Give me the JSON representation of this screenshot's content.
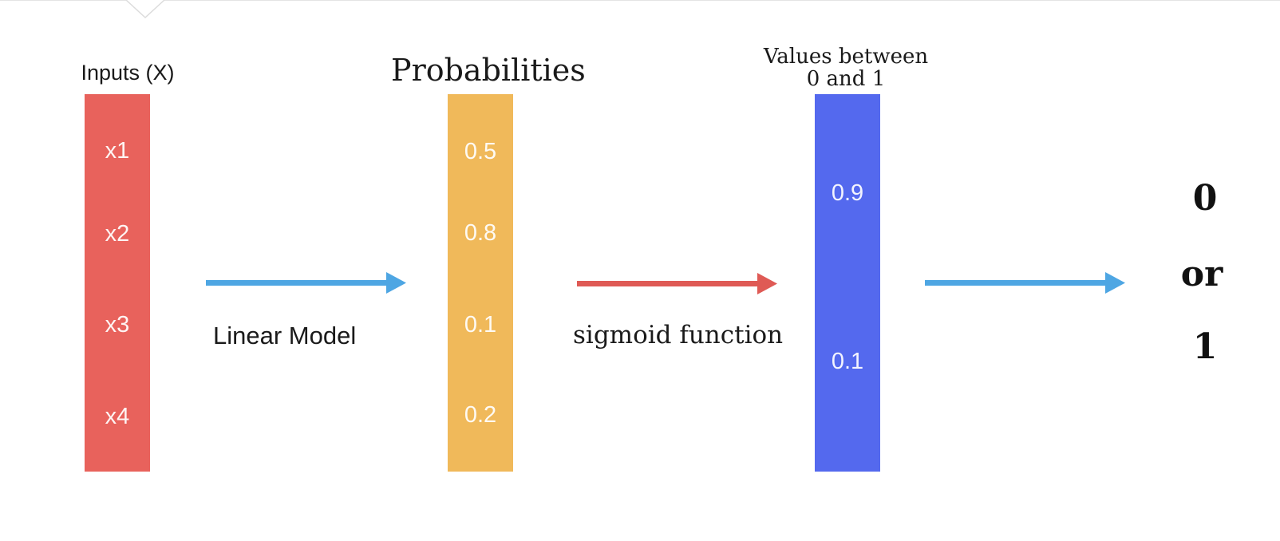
{
  "columns": {
    "inputs": {
      "title": "Inputs (X)",
      "color": "#e8625c",
      "cells": [
        "x1",
        "x2",
        "x3",
        "x4"
      ]
    },
    "probs": {
      "title": "Probabilities",
      "color": "#f0b95a",
      "cells": [
        "0.5",
        "0.8",
        "0.1",
        "0.2"
      ]
    },
    "values": {
      "title_line1": "Values between",
      "title_line2": "0 and 1",
      "color": "#5469ee",
      "cells": [
        "0.9",
        "0.1"
      ]
    }
  },
  "arrows": {
    "linear": {
      "label": "Linear Model",
      "color": "#4ea6e3"
    },
    "sigmoid": {
      "label": "sigmoid function",
      "color": "#df5a55"
    },
    "output": {
      "label": "",
      "color": "#4ea6e3"
    }
  },
  "output": {
    "line1": "0",
    "line2": "or",
    "line3": "1"
  }
}
